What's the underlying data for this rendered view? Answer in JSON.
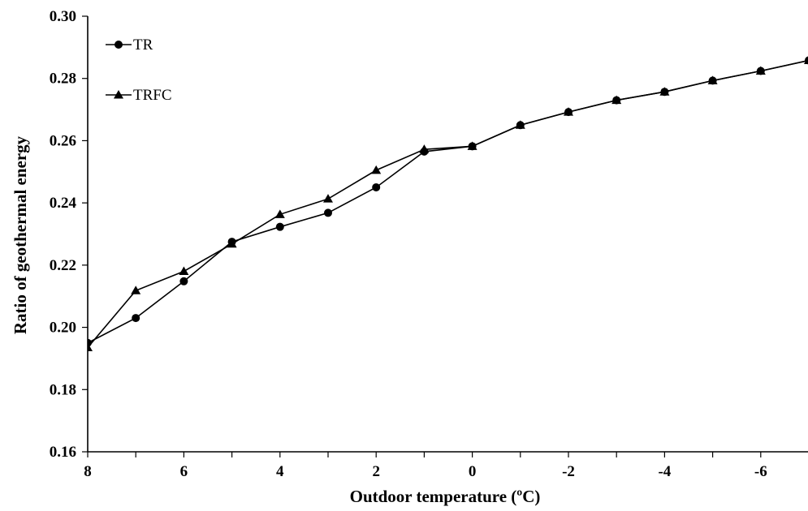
{
  "chart_data": {
    "type": "line",
    "title": "",
    "xlabel": "Outdoor temperature (ºC)",
    "ylabel": "Ratio of  geothermal energy",
    "x": [
      8,
      7,
      6,
      5,
      4,
      3,
      2,
      1,
      0,
      -1,
      -2,
      -3,
      -4,
      -5,
      -6,
      -7
    ],
    "xlim": [
      8,
      -7
    ],
    "x_ticks": [
      "8",
      "6",
      "4",
      "2",
      "0",
      "-2",
      "-4",
      "-6"
    ],
    "ylim": [
      0.16,
      0.3
    ],
    "y_ticks": [
      "0.16",
      "0.18",
      "0.20",
      "0.22",
      "0.24",
      "0.26",
      "0.28",
      "0.30"
    ],
    "grid": false,
    "legend_position": "top-left",
    "series": [
      {
        "name": "TR",
        "marker": "circle",
        "color": "#000000",
        "values": [
          0.195,
          0.203,
          0.2148,
          0.2275,
          0.2323,
          0.2368,
          0.245,
          0.2565,
          0.2582,
          0.265,
          0.2692,
          0.273,
          0.2757,
          0.2793,
          0.2824,
          0.2858
        ]
      },
      {
        "name": "TRFC",
        "marker": "triangle",
        "color": "#000000",
        "values": [
          0.1935,
          0.2118,
          0.218,
          0.2268,
          0.2363,
          0.2413,
          0.2505,
          0.2572,
          0.2582,
          0.265,
          0.2692,
          0.273,
          0.2757,
          0.2793,
          0.2824,
          0.2858
        ]
      }
    ]
  }
}
